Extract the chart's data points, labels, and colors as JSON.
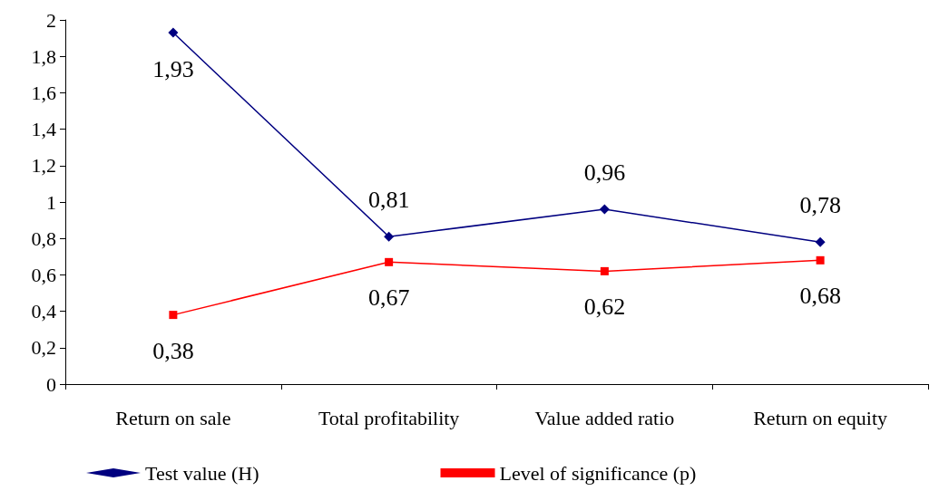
{
  "chart_data": {
    "type": "line",
    "categories": [
      "Return on sale",
      "Total profitability",
      "Value added ratio",
      "Return on equity"
    ],
    "series": [
      {
        "name": "Test value (H)",
        "color": "#000080",
        "marker": "diamond",
        "values": [
          1.93,
          0.81,
          0.96,
          0.78
        ],
        "value_labels": [
          "1,93",
          "0,81",
          "0,96",
          "0,78"
        ]
      },
      {
        "name": "Level of significance (p)",
        "color": "#ff0000",
        "marker": "square",
        "values": [
          0.38,
          0.67,
          0.62,
          0.68
        ],
        "value_labels": [
          "0,38",
          "0,67",
          "0,62",
          "0,68"
        ]
      }
    ],
    "ylim": [
      0,
      2
    ],
    "yticks": [
      0,
      {
        "value": 0.2,
        "label": "0,2"
      },
      {
        "value": 0.4,
        "label": "0,4"
      },
      {
        "value": 0.6,
        "label": "0,6"
      },
      {
        "value": 0.8,
        "label": "0,8"
      },
      1,
      {
        "value": 1.2,
        "label": "1,2"
      },
      {
        "value": 1.4,
        "label": "1,4"
      },
      {
        "value": 1.6,
        "label": "1,6"
      },
      {
        "value": 1.8,
        "label": "1,8"
      },
      2
    ],
    "grid": false,
    "legend": "bottom",
    "line_style": "solid"
  }
}
